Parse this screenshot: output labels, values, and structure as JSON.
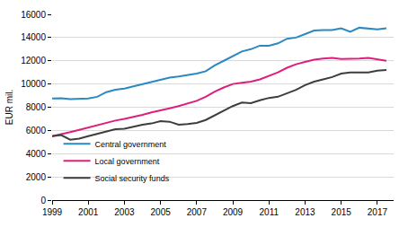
{
  "chart_data": {
    "type": "line",
    "y_label": "EUR mil.",
    "x": [
      1999,
      1999.5,
      2000,
      2000.5,
      2001,
      2001.5,
      2002,
      2002.5,
      2003,
      2003.5,
      2004,
      2004.5,
      2005,
      2005.5,
      2006,
      2006.5,
      2007,
      2007.5,
      2008,
      2008.5,
      2009,
      2009.5,
      2010,
      2010.5,
      2011,
      2011.5,
      2012,
      2012.5,
      2013,
      2013.5,
      2014,
      2014.5,
      2015,
      2015.5,
      2016,
      2016.5,
      2017,
      2017.5
    ],
    "series": [
      {
        "name": "Central government",
        "color": "#2a88c2",
        "values": [
          8750,
          8780,
          8700,
          8720,
          8750,
          8900,
          9300,
          9500,
          9600,
          9800,
          10000,
          10200,
          10350,
          10550,
          10650,
          10750,
          10900,
          11100,
          11600,
          12000,
          12400,
          12800,
          13000,
          13300,
          13300,
          13500,
          13900,
          14000,
          14300,
          14600,
          14650,
          14650,
          14800,
          14500,
          14850,
          14800,
          14700,
          14800
        ]
      },
      {
        "name": "Local government",
        "color": "#dc1f7f",
        "values": [
          5500,
          5650,
          5850,
          6050,
          6250,
          6500,
          6700,
          6850,
          7000,
          7150,
          7350,
          7550,
          7700,
          7900,
          8100,
          8300,
          8550,
          8900,
          9350,
          9700,
          10000,
          10100,
          10200,
          10400,
          10700,
          11000,
          11400,
          11700,
          11900,
          12100,
          12200,
          12250,
          12150,
          12150,
          12200,
          12250,
          12150,
          12000
        ]
      },
      {
        "name": "Social security funds",
        "color": "#3d3d3d",
        "values": [
          5500,
          5600,
          5200,
          5300,
          5500,
          5700,
          5850,
          6100,
          6150,
          6350,
          6500,
          6600,
          6800,
          6750,
          6500,
          6550,
          6650,
          6900,
          7300,
          7700,
          8100,
          8400,
          8350,
          8600,
          8800,
          8900,
          9200,
          9500,
          9900,
          10200,
          10400,
          10600,
          10900,
          11000,
          11000,
          11000,
          11150,
          11200
        ]
      }
    ],
    "xlim": [
      1999,
      2017.9
    ],
    "xticks": [
      1999,
      2001,
      2003,
      2005,
      2007,
      2009,
      2011,
      2013,
      2015,
      2017
    ],
    "ylim": [
      0,
      16000
    ],
    "yticks": [
      0,
      2000,
      4000,
      6000,
      8000,
      10000,
      12000,
      14000,
      16000
    ],
    "grid": true,
    "legend": "lower left"
  }
}
